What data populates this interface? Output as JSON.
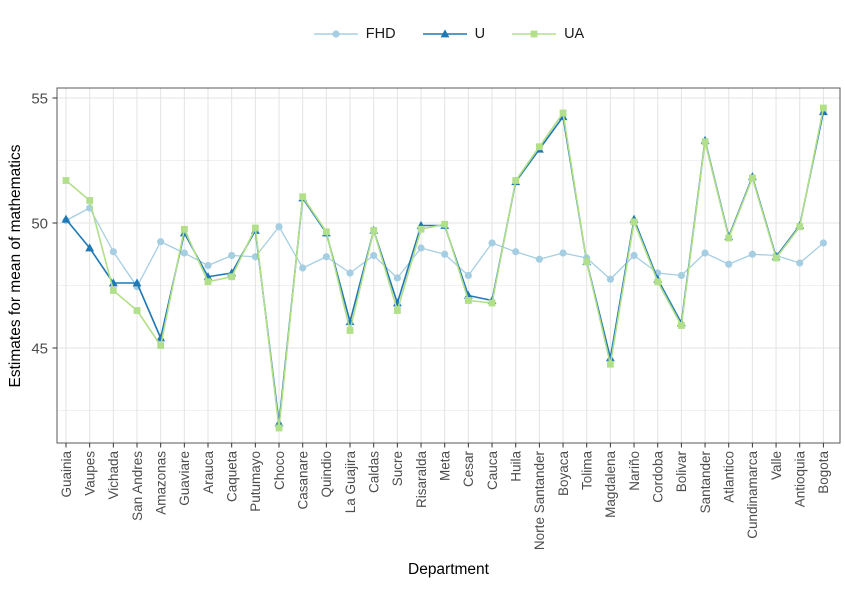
{
  "chart_data": {
    "type": "line",
    "title": "",
    "xlabel": "Department",
    "ylabel": "Estimates for mean of mathematics",
    "ylim": [
      41.2,
      55.4
    ],
    "yticks": [
      45,
      50,
      55
    ],
    "yticks_minor": [
      42.5,
      47.5,
      52.5
    ],
    "grid": "on",
    "legend_position": "top-center",
    "categories": [
      "Guainia",
      "Vaupes",
      "Vichada",
      "San Andres",
      "Amazonas",
      "Guaviare",
      "Arauca",
      "Caqueta",
      "Putumayo",
      "Choco",
      "Casanare",
      "Quindio",
      "La Guajira",
      "Caldas",
      "Sucre",
      "Risaralda",
      "Meta",
      "Cesar",
      "Cauca",
      "Huila",
      "Norte Santander",
      "Boyaca",
      "Tolima",
      "Magdalena",
      "Nariño",
      "Cordoba",
      "Bolivar",
      "Santander",
      "Atlantico",
      "Cundinamarca",
      "Valle",
      "Antioquia",
      "Bogota"
    ],
    "series": [
      {
        "name": "FHD",
        "color": "#a6cee3",
        "marker": "circle",
        "line_width": 1.3,
        "values": [
          50.1,
          50.6,
          48.85,
          47.45,
          49.25,
          48.8,
          48.3,
          48.7,
          48.65,
          49.85,
          48.2,
          48.65,
          48.0,
          48.7,
          47.8,
          49.0,
          48.75,
          47.9,
          49.2,
          48.85,
          48.55,
          48.8,
          48.6,
          47.75,
          48.7,
          48.0,
          47.9,
          48.8,
          48.35,
          48.75,
          48.7,
          48.4,
          49.2
        ]
      },
      {
        "name": "U",
        "color": "#1f78b4",
        "marker": "triangle",
        "line_width": 1.6,
        "values": [
          50.15,
          49.0,
          47.6,
          47.6,
          45.4,
          49.6,
          47.85,
          48.0,
          49.7,
          42.0,
          51.0,
          49.6,
          46.05,
          49.7,
          46.8,
          49.9,
          49.9,
          47.1,
          46.9,
          51.65,
          52.95,
          54.25,
          48.45,
          44.6,
          50.15,
          47.75,
          46.0,
          53.3,
          49.45,
          51.85,
          48.65,
          49.9,
          54.45
        ]
      },
      {
        "name": "UA",
        "color": "#b2df8a",
        "marker": "square",
        "line_width": 1.6,
        "values": [
          51.7,
          50.9,
          47.3,
          46.5,
          45.1,
          49.75,
          47.65,
          47.85,
          49.8,
          41.8,
          51.05,
          49.65,
          45.7,
          49.7,
          46.5,
          49.75,
          49.95,
          46.9,
          46.8,
          51.7,
          53.05,
          54.4,
          48.45,
          44.35,
          50.05,
          47.65,
          45.9,
          53.25,
          49.4,
          51.8,
          48.6,
          49.85,
          54.6
        ]
      }
    ]
  },
  "style": {
    "background": "#ffffff",
    "panel_border": "#595959",
    "grid_major": "#e3e3e3",
    "grid_minor": "#f1f1f1",
    "tick_color": "#333333",
    "tick_label_color": "#4d4d4d",
    "axis_title_color": "#000000"
  }
}
